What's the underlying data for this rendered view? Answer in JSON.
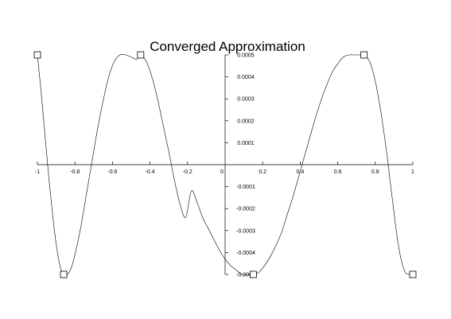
{
  "chart_data": {
    "type": "line",
    "title": "Converged Approximation",
    "xlabel": "",
    "ylabel": "",
    "xlim": [
      -1,
      1
    ],
    "ylim": [
      -0.0005,
      0.0005
    ],
    "grid": false,
    "x_ticks": [
      -1,
      -0.8,
      -0.6,
      -0.4,
      -0.2,
      0,
      0.2,
      0.4,
      0.6,
      0.8,
      1
    ],
    "x_tick_labels": [
      "-1",
      "-0.8",
      "-0.6",
      "-0.4",
      "-0.2",
      "0",
      "0.2",
      "0.4",
      "0.6",
      "0.8",
      "1"
    ],
    "y_ticks": [
      -0.0005,
      -0.0004,
      -0.0003,
      -0.0002,
      -0.0001,
      0.0001,
      0.0002,
      0.0003,
      0.0004,
      0.0005
    ],
    "y_tick_labels": [
      "-0.0005",
      "-0.0004",
      "-0.0003",
      "-0.0002",
      "-0.0001",
      "0.0001",
      "0.0002",
      "0.0003",
      "0.0004",
      "0.0005"
    ],
    "series": [
      {
        "x": [
          -1,
          -0.98,
          -0.96,
          -0.94,
          -0.92,
          -0.9,
          -0.88,
          -0.86,
          -0.84,
          -0.82,
          -0.8,
          -0.77,
          -0.74,
          -0.71,
          -0.68,
          -0.65,
          -0.62,
          -0.59,
          -0.56,
          -0.53,
          -0.5,
          -0.47,
          -0.45,
          -0.42,
          -0.39,
          -0.36,
          -0.33,
          -0.3,
          -0.27,
          -0.24,
          -0.21,
          -0.18,
          -0.15,
          -0.12,
          -0.09,
          -0.06,
          -0.03,
          0,
          0.03,
          0.06,
          0.09,
          0.12,
          0.15,
          0.18,
          0.21,
          0.24,
          0.27,
          0.3,
          0.33,
          0.36,
          0.39,
          0.42,
          0.45,
          0.48,
          0.51,
          0.54,
          0.57,
          0.6,
          0.63,
          0.66,
          0.69,
          0.72,
          0.74,
          0.77,
          0.8,
          0.83,
          0.86,
          0.88,
          0.9,
          0.92,
          0.94,
          0.96,
          0.98,
          1
        ],
        "y": [
          0.0005,
          0.00033,
          0.00014,
          -5e-05,
          -0.00022,
          -0.00036,
          -0.00046,
          -0.0005,
          -0.0005,
          -0.00047,
          -0.00041,
          -0.00029,
          -0.00014,
          1e-05,
          0.00016,
          0.00029,
          0.0004,
          0.00047,
          0.0005,
          0.0005,
          0.00049,
          0.00048,
          0.0005,
          0.00047,
          0.0004,
          0.0003,
          0.00018,
          6e-05,
          -7e-05,
          -0.00018,
          -0.00024,
          -0.00012,
          -0.00017,
          -0.00024,
          -0.00029,
          -0.00034,
          -0.00039,
          -0.00043,
          -0.00046,
          -0.00048,
          -0.0005,
          -0.0005,
          -0.0005,
          -0.00049,
          -0.00046,
          -0.00042,
          -0.00037,
          -0.00031,
          -0.00023,
          -0.00015,
          -6e-05,
          3e-05,
          0.00012,
          0.00021,
          0.00029,
          0.00036,
          0.00042,
          0.00046,
          0.00049,
          0.0005,
          0.0005,
          0.0005,
          0.0005,
          0.00047,
          0.00038,
          0.00024,
          6e-05,
          -8e-05,
          -0.00022,
          -0.00035,
          -0.00044,
          -0.00049,
          -0.0005,
          -0.0005
        ]
      }
    ],
    "markers": [
      {
        "x": -1,
        "y": 0.0005
      },
      {
        "x": -0.86,
        "y": -0.0005
      },
      {
        "x": -0.45,
        "y": 0.0005
      },
      {
        "x": 0.15,
        "y": -0.0005
      },
      {
        "x": 0.74,
        "y": 0.0005
      },
      {
        "x": 1,
        "y": -0.0005
      }
    ],
    "marker_shape": "open-square"
  }
}
